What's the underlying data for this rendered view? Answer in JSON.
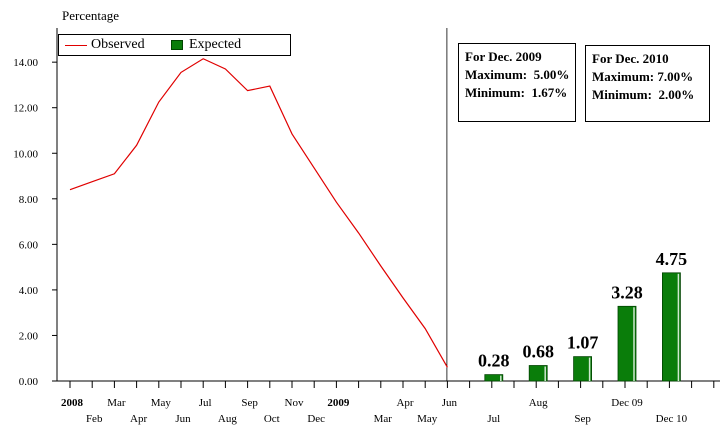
{
  "chart_data": {
    "type": "line+bar",
    "ylabel": "Percentage",
    "ylim": [
      0,
      15.5
    ],
    "yticks": [
      "0.00",
      "2.00",
      "4.00",
      "6.00",
      "8.00",
      "10.00",
      "12.00",
      "14.00"
    ],
    "grid": false,
    "legend": {
      "placement": "top-left",
      "entries": [
        "Observed",
        "Expected"
      ]
    },
    "x_tick_labels": [
      {
        "index": 0,
        "label": "2008",
        "row": 1,
        "bold": true
      },
      {
        "index": 1,
        "label": "Feb",
        "row": 2,
        "bold": false
      },
      {
        "index": 2,
        "label": "Mar",
        "row": 1,
        "bold": false
      },
      {
        "index": 3,
        "label": "Apr",
        "row": 2,
        "bold": false
      },
      {
        "index": 4,
        "label": "May",
        "row": 1,
        "bold": false
      },
      {
        "index": 5,
        "label": "Jun",
        "row": 2,
        "bold": false
      },
      {
        "index": 6,
        "label": "Jul",
        "row": 1,
        "bold": false
      },
      {
        "index": 7,
        "label": "Aug",
        "row": 2,
        "bold": false
      },
      {
        "index": 8,
        "label": "Sep",
        "row": 1,
        "bold": false
      },
      {
        "index": 9,
        "label": "Oct",
        "row": 2,
        "bold": false
      },
      {
        "index": 10,
        "label": "Nov",
        "row": 1,
        "bold": false
      },
      {
        "index": 11,
        "label": "Dec",
        "row": 2,
        "bold": false
      },
      {
        "index": 12,
        "label": "2009",
        "row": 1,
        "bold": true
      },
      {
        "index": 14,
        "label": "Mar",
        "row": 2,
        "bold": false
      },
      {
        "index": 15,
        "label": "Apr",
        "row": 1,
        "bold": false
      },
      {
        "index": 16,
        "label": "May",
        "row": 2,
        "bold": false
      },
      {
        "index": 17,
        "label": "Jun",
        "row": 1,
        "bold": false
      },
      {
        "index": 19,
        "label": "Jul",
        "row": 2,
        "bold": false
      },
      {
        "index": 21,
        "label": "Aug",
        "row": 1,
        "bold": false
      },
      {
        "index": 23,
        "label": "Sep",
        "row": 2,
        "bold": false
      },
      {
        "index": 25,
        "label": "Dec 09",
        "row": 1,
        "bold": false
      },
      {
        "index": 27,
        "label": "Dec 10",
        "row": 2,
        "bold": false
      }
    ],
    "series": [
      {
        "name": "Observed",
        "type": "line",
        "color": "#e00000",
        "points": [
          [
            0,
            8.4
          ],
          [
            1,
            8.75
          ],
          [
            2,
            9.1
          ],
          [
            3,
            10.35
          ],
          [
            4,
            12.25
          ],
          [
            5,
            13.55
          ],
          [
            6,
            14.15
          ],
          [
            7,
            13.7
          ],
          [
            8,
            12.75
          ],
          [
            9,
            12.95
          ],
          [
            10,
            10.85
          ],
          [
            11,
            9.35
          ],
          [
            12,
            7.85
          ],
          [
            13,
            6.5
          ],
          [
            14,
            5.05
          ],
          [
            15,
            3.65
          ],
          [
            16,
            2.3
          ],
          [
            17,
            0.6
          ]
        ]
      },
      {
        "name": "Expected",
        "type": "bar",
        "color": "#0a7d0a",
        "points": [
          [
            19,
            0.28
          ],
          [
            21,
            0.68
          ],
          [
            23,
            1.07
          ],
          [
            25,
            3.28
          ],
          [
            27,
            4.75
          ]
        ],
        "labels": [
          "0.28",
          "0.68",
          "1.07",
          "3.28",
          "4.75"
        ]
      }
    ],
    "divider_at_index": 17,
    "annotations": [
      {
        "title": "For Dec. 2009",
        "lines": [
          "Maximum:  5.00%",
          "Minimum:  1.67%"
        ]
      },
      {
        "title": "For Dec. 2010",
        "lines": [
          "Maximum: 7.00%",
          "Minimum:  2.00%"
        ]
      }
    ]
  }
}
